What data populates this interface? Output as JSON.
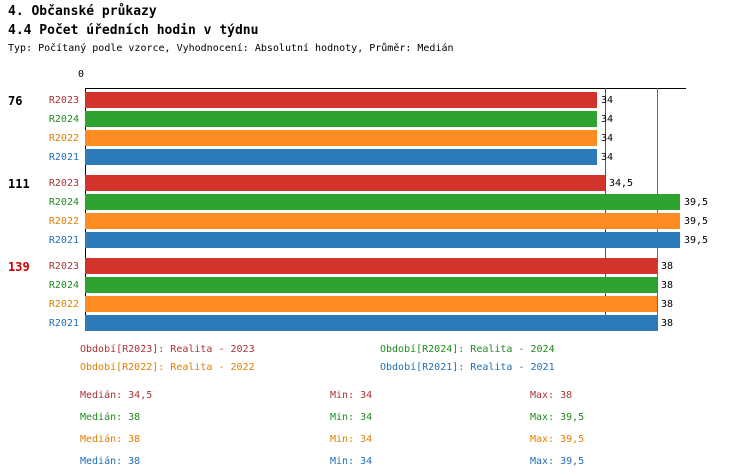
{
  "header": {
    "title1": "4. Občanské průkazy",
    "title2": "4.4 Počet úředních hodin v týdnu",
    "subtitle": "Typ: Počítaný podle vzorce, Vyhodnocení: Absolutní hodnoty, Průměr: Medián"
  },
  "chart_data": {
    "type": "bar",
    "orientation": "horizontal",
    "title": "4.4 Počet úředních hodin v týdnu",
    "origin_label": "0",
    "xlim": [
      0,
      40
    ],
    "grid": false,
    "series": [
      {
        "name": "R2023",
        "bar_color": "#d2342b",
        "text_color": "#aa3333"
      },
      {
        "name": "R2024",
        "bar_color": "#2fa32f",
        "text_color": "#1e8c1e"
      },
      {
        "name": "R2022",
        "bar_color": "#ff8c21",
        "text_color": "#e07f00"
      },
      {
        "name": "R2021",
        "bar_color": "#2b7bba",
        "text_color": "#1f6fba"
      }
    ],
    "groups": [
      {
        "label": "76",
        "label_color": "#000000",
        "values": [
          34,
          34,
          34,
          34
        ],
        "displays": [
          "34",
          "34",
          "34",
          "34"
        ]
      },
      {
        "label": "111",
        "label_color": "#000000",
        "values": [
          34.5,
          39.5,
          39.5,
          39.5
        ],
        "displays": [
          "34,5",
          "39,5",
          "39,5",
          "39,5"
        ]
      },
      {
        "label": "139",
        "label_color": "#cc0000",
        "values": [
          38,
          38,
          38,
          38
        ],
        "displays": [
          "38",
          "38",
          "38",
          "38"
        ]
      }
    ],
    "median_lines": [
      {
        "value": 34.5,
        "color": "#a03333"
      },
      {
        "value": 38,
        "color": "#3377aa"
      }
    ]
  },
  "legend": {
    "items": [
      {
        "label": "Období[R2023]: Realita - 2023",
        "color": "#aa3333"
      },
      {
        "label": "Období[R2024]: Realita - 2024",
        "color": "#1e8c1e"
      },
      {
        "label": "Období[R2022]: Realita - 2022",
        "color": "#e07f00"
      },
      {
        "label": "Období[R2021]: Realita - 2021",
        "color": "#1f6fba"
      }
    ]
  },
  "stats": {
    "rows": [
      {
        "median": "Medián: 34,5",
        "min": "Min: 34",
        "max": "Max: 38",
        "color": "#aa3333"
      },
      {
        "median": "Medián: 38",
        "min": "Min: 34",
        "max": "Max: 39,5",
        "color": "#1e8c1e"
      },
      {
        "median": "Medián: 38",
        "min": "Min: 34",
        "max": "Max: 39,5",
        "color": "#e07f00"
      },
      {
        "median": "Medián: 38",
        "min": "Min: 34",
        "max": "Max: 39,5",
        "color": "#1f6fba"
      }
    ]
  }
}
